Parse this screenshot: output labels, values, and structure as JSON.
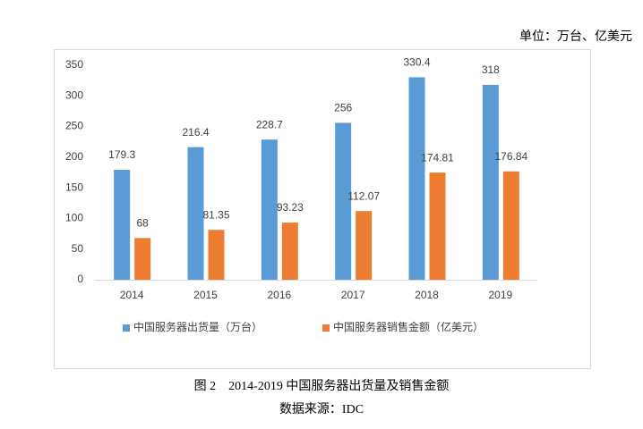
{
  "chart_data": {
    "type": "bar",
    "unit_label": "单位：万台、亿美元",
    "title": "图 2　2014-2019 中国服务器出货量及销售金额",
    "source": "数据来源：IDC",
    "categories": [
      "2014",
      "2015",
      "2016",
      "2017",
      "2018",
      "2019"
    ],
    "series": [
      {
        "name": "中国服务器出货量（万台）",
        "color": "#5b9bd5",
        "values": [
          179.3,
          216.4,
          228.7,
          256,
          330.4,
          318
        ]
      },
      {
        "name": "中国服务器销售金额（亿美元）",
        "color": "#ed7d31",
        "values": [
          68,
          81.35,
          93.23,
          112.07,
          174.81,
          176.84
        ]
      }
    ],
    "ylim": [
      0,
      350
    ],
    "yticks": [
      0,
      50,
      100,
      150,
      200,
      250,
      300,
      350
    ],
    "grid": false,
    "legend": "bottom"
  }
}
